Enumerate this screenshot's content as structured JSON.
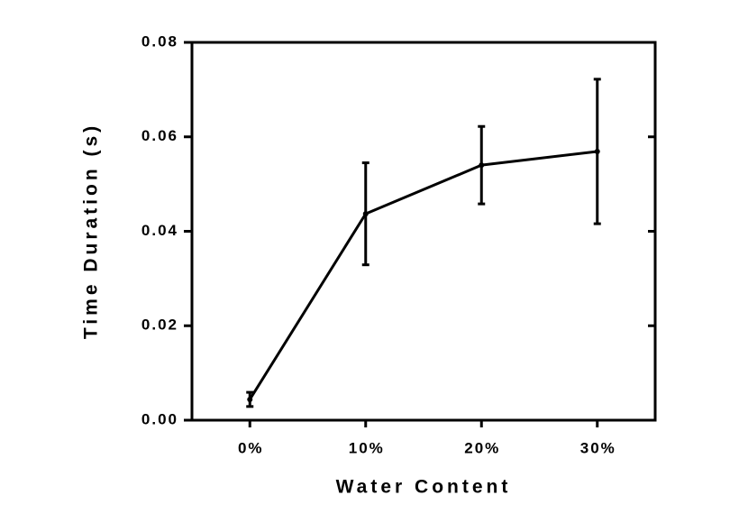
{
  "chart_data": {
    "type": "line",
    "x_label": "Water Content",
    "y_label": "Time Duration (s)",
    "categories": [
      "0%",
      "10%",
      "20%",
      "30%"
    ],
    "values": [
      0.0044,
      0.0437,
      0.054,
      0.0569
    ],
    "errors": [
      0.0015,
      0.0108,
      0.0082,
      0.0153
    ],
    "color": "#000000",
    "ylim": [
      0,
      0.08
    ],
    "yticks": [
      {
        "value": 0,
        "label": "0.00"
      },
      {
        "value": 0.02,
        "label": "0.02"
      },
      {
        "value": 0.04,
        "label": "0.04"
      },
      {
        "value": 0.06,
        "label": "0.06"
      },
      {
        "value": 0.08,
        "label": "0.08"
      }
    ]
  }
}
